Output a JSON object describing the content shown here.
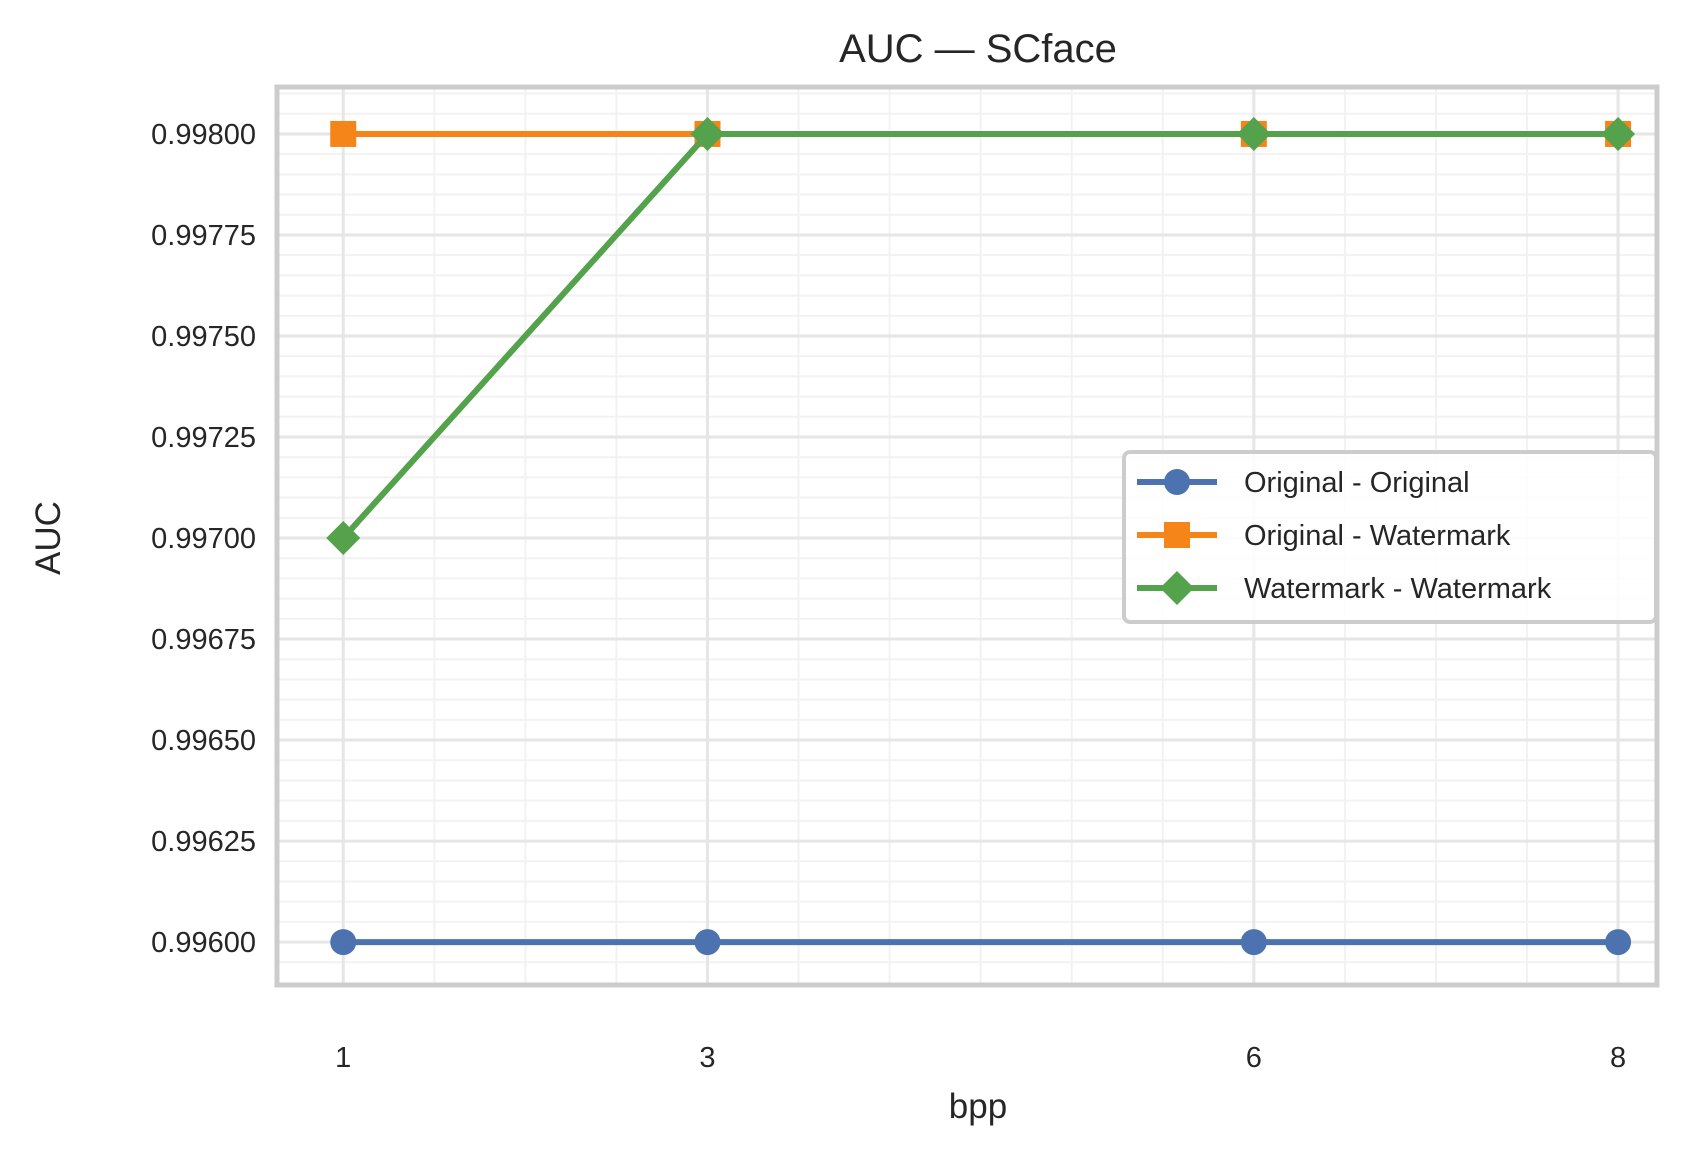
{
  "chart_data": {
    "type": "line",
    "title": "AUC — SCface",
    "xlabel": "bpp",
    "ylabel": "AUC",
    "x": [
      1,
      3,
      6,
      8
    ],
    "x_ticks": [
      "1",
      "3",
      "6",
      "8"
    ],
    "xlim": [
      0.65,
      8.2
    ],
    "ylim": [
      0.9959,
      0.99811
    ],
    "y_ticks": [
      0.996,
      0.99625,
      0.9965,
      0.99675,
      0.997,
      0.99725,
      0.9975,
      0.99775,
      0.998
    ],
    "y_tick_labels": [
      "0.99600",
      "0.99625",
      "0.99650",
      "0.99675",
      "0.99700",
      "0.99725",
      "0.99750",
      "0.99775",
      "0.99800"
    ],
    "grid": true,
    "legend_position": "center-right",
    "series": [
      {
        "name": "Original - Original",
        "values": [
          0.996,
          0.996,
          0.996,
          0.996
        ],
        "color": "#4C72B0",
        "marker": "circle"
      },
      {
        "name": "Original - Watermark",
        "values": [
          0.998,
          0.998,
          0.998,
          0.998
        ],
        "color": "#F58518",
        "marker": "square"
      },
      {
        "name": "Watermark - Watermark",
        "values": [
          0.997,
          0.998,
          0.998,
          0.998
        ],
        "color": "#54A24B",
        "marker": "diamond"
      }
    ]
  }
}
